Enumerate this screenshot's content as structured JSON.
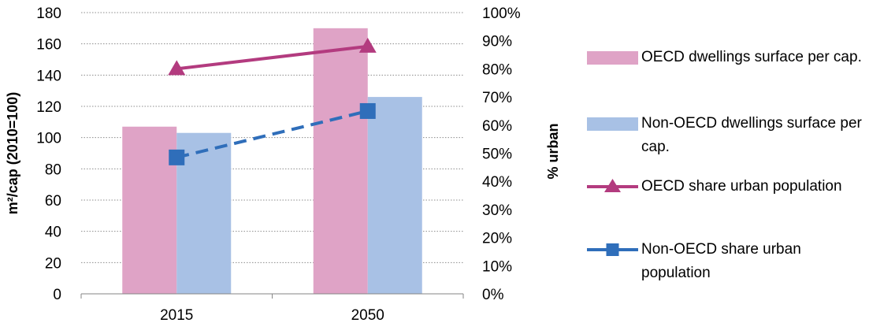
{
  "chart_data": {
    "type": "bar",
    "categories": [
      "2015",
      "2050"
    ],
    "series": [
      {
        "name": "OECD dwellings surface per cap.",
        "kind": "bar",
        "axis": "left",
        "values": [
          107,
          170
        ],
        "color": "#DFA3C6"
      },
      {
        "name": "Non-OECD dwellings surface per cap.",
        "kind": "bar",
        "axis": "left",
        "values": [
          103,
          126
        ],
        "color": "#A8C1E5"
      },
      {
        "name": "OECD share urban population",
        "kind": "line",
        "axis": "right",
        "values": [
          80,
          88
        ],
        "color": "#B33B7F",
        "marker": "triangle",
        "line_style": "solid"
      },
      {
        "name": "Non-OECD  share urban population",
        "kind": "line",
        "axis": "right",
        "values": [
          48.5,
          65
        ],
        "color": "#2F6EBA",
        "marker": "square",
        "line_style": "dashed"
      }
    ],
    "ylabel": "m²/cap (2010=100)",
    "y2label": "% urban",
    "ylim": [
      0,
      180
    ],
    "y2lim": [
      0,
      100
    ],
    "yticks": [
      "0",
      "20",
      "40",
      "60",
      "80",
      "100",
      "120",
      "140",
      "160",
      "180"
    ],
    "y2ticks": [
      "0%",
      "10%",
      "20%",
      "30%",
      "40%",
      "50%",
      "60%",
      "70%",
      "80%",
      "90%",
      "100%"
    ],
    "grid": true,
    "legend_position": "right"
  }
}
